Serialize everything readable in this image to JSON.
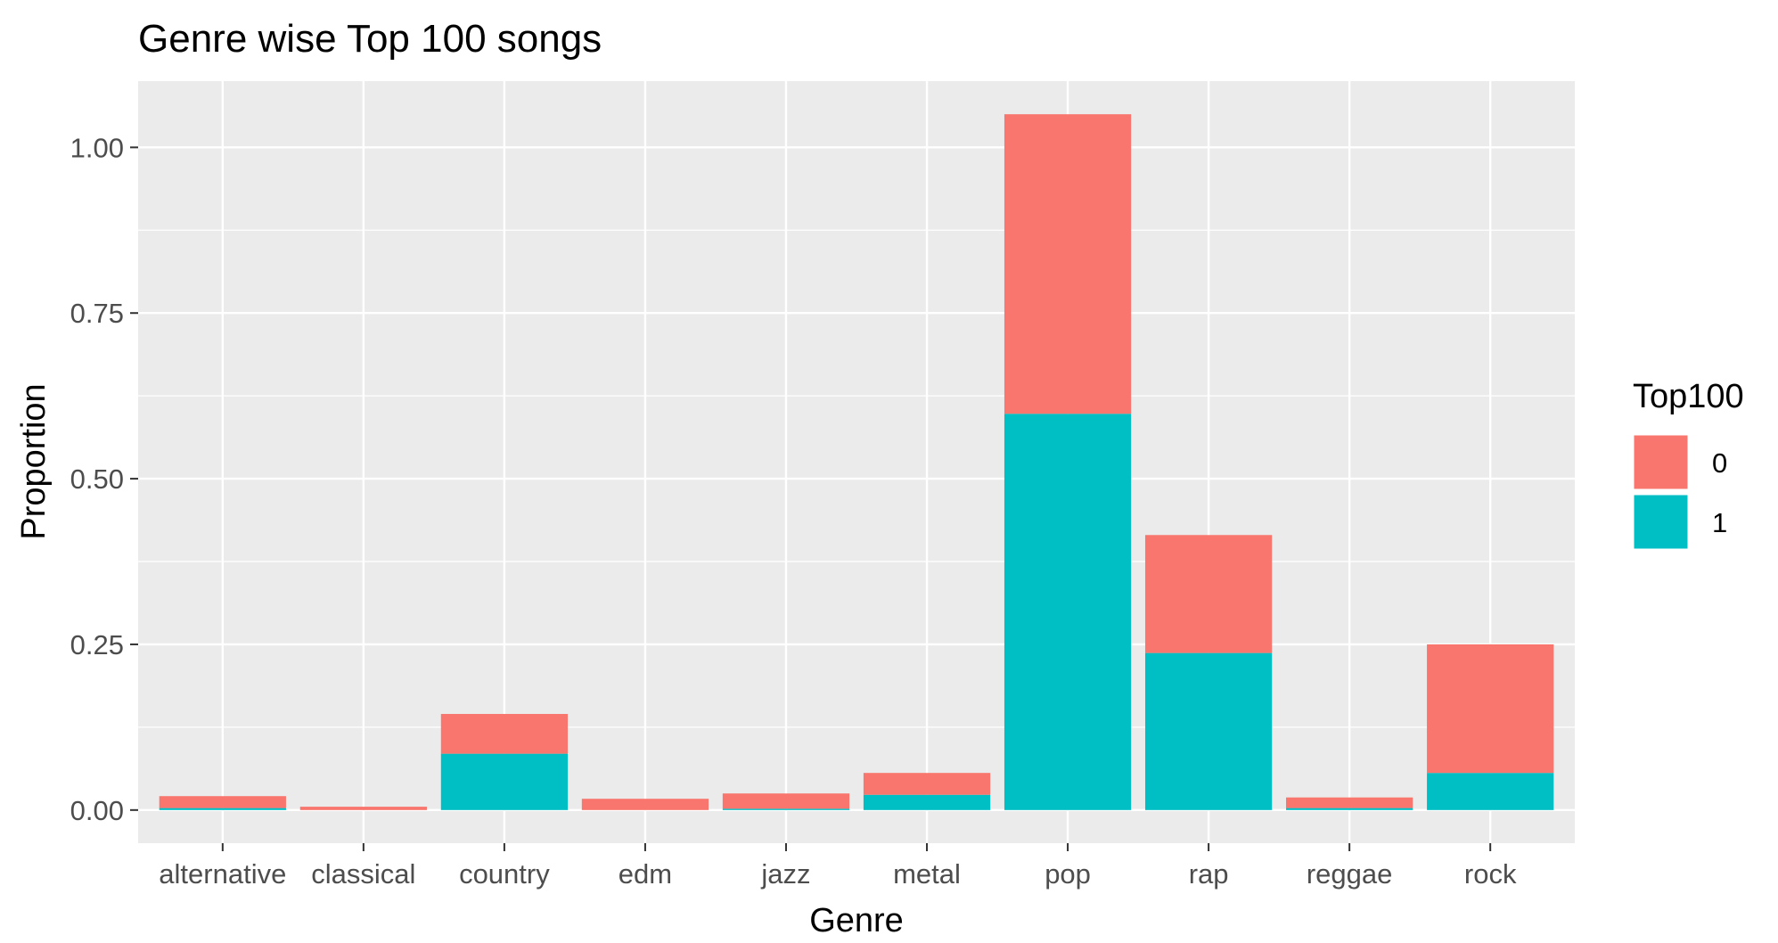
{
  "chart_data": {
    "type": "bar",
    "stacked": true,
    "title": "Genre wise Top 100 songs",
    "xlabel": "Genre",
    "ylabel": "Proportion",
    "categories": [
      "alternative",
      "classical",
      "country",
      "edm",
      "jazz",
      "metal",
      "pop",
      "rap",
      "reggae",
      "rock"
    ],
    "series": [
      {
        "name": "1",
        "color": "#00BFC4",
        "values": [
          0.003,
          0.0,
          0.085,
          0.0,
          0.002,
          0.023,
          0.598,
          0.237,
          0.003,
          0.056
        ]
      },
      {
        "name": "0",
        "color": "#F8766D",
        "values": [
          0.018,
          0.005,
          0.06,
          0.017,
          0.023,
          0.033,
          0.452,
          0.178,
          0.016,
          0.194
        ]
      }
    ],
    "ylim": [
      -0.05,
      1.1
    ],
    "yticks": [
      0.0,
      0.25,
      0.5,
      0.75,
      1.0
    ],
    "ytick_labels": [
      "0.00",
      "0.25",
      "0.50",
      "0.75",
      "1.00"
    ],
    "grid": true,
    "legend": {
      "title": "Top100",
      "position": "right",
      "entries": [
        {
          "label": "0",
          "color": "#F8766D"
        },
        {
          "label": "1",
          "color": "#00BFC4"
        }
      ]
    },
    "panel_background": "#EBEBEB",
    "grid_color": "#FFFFFF"
  }
}
